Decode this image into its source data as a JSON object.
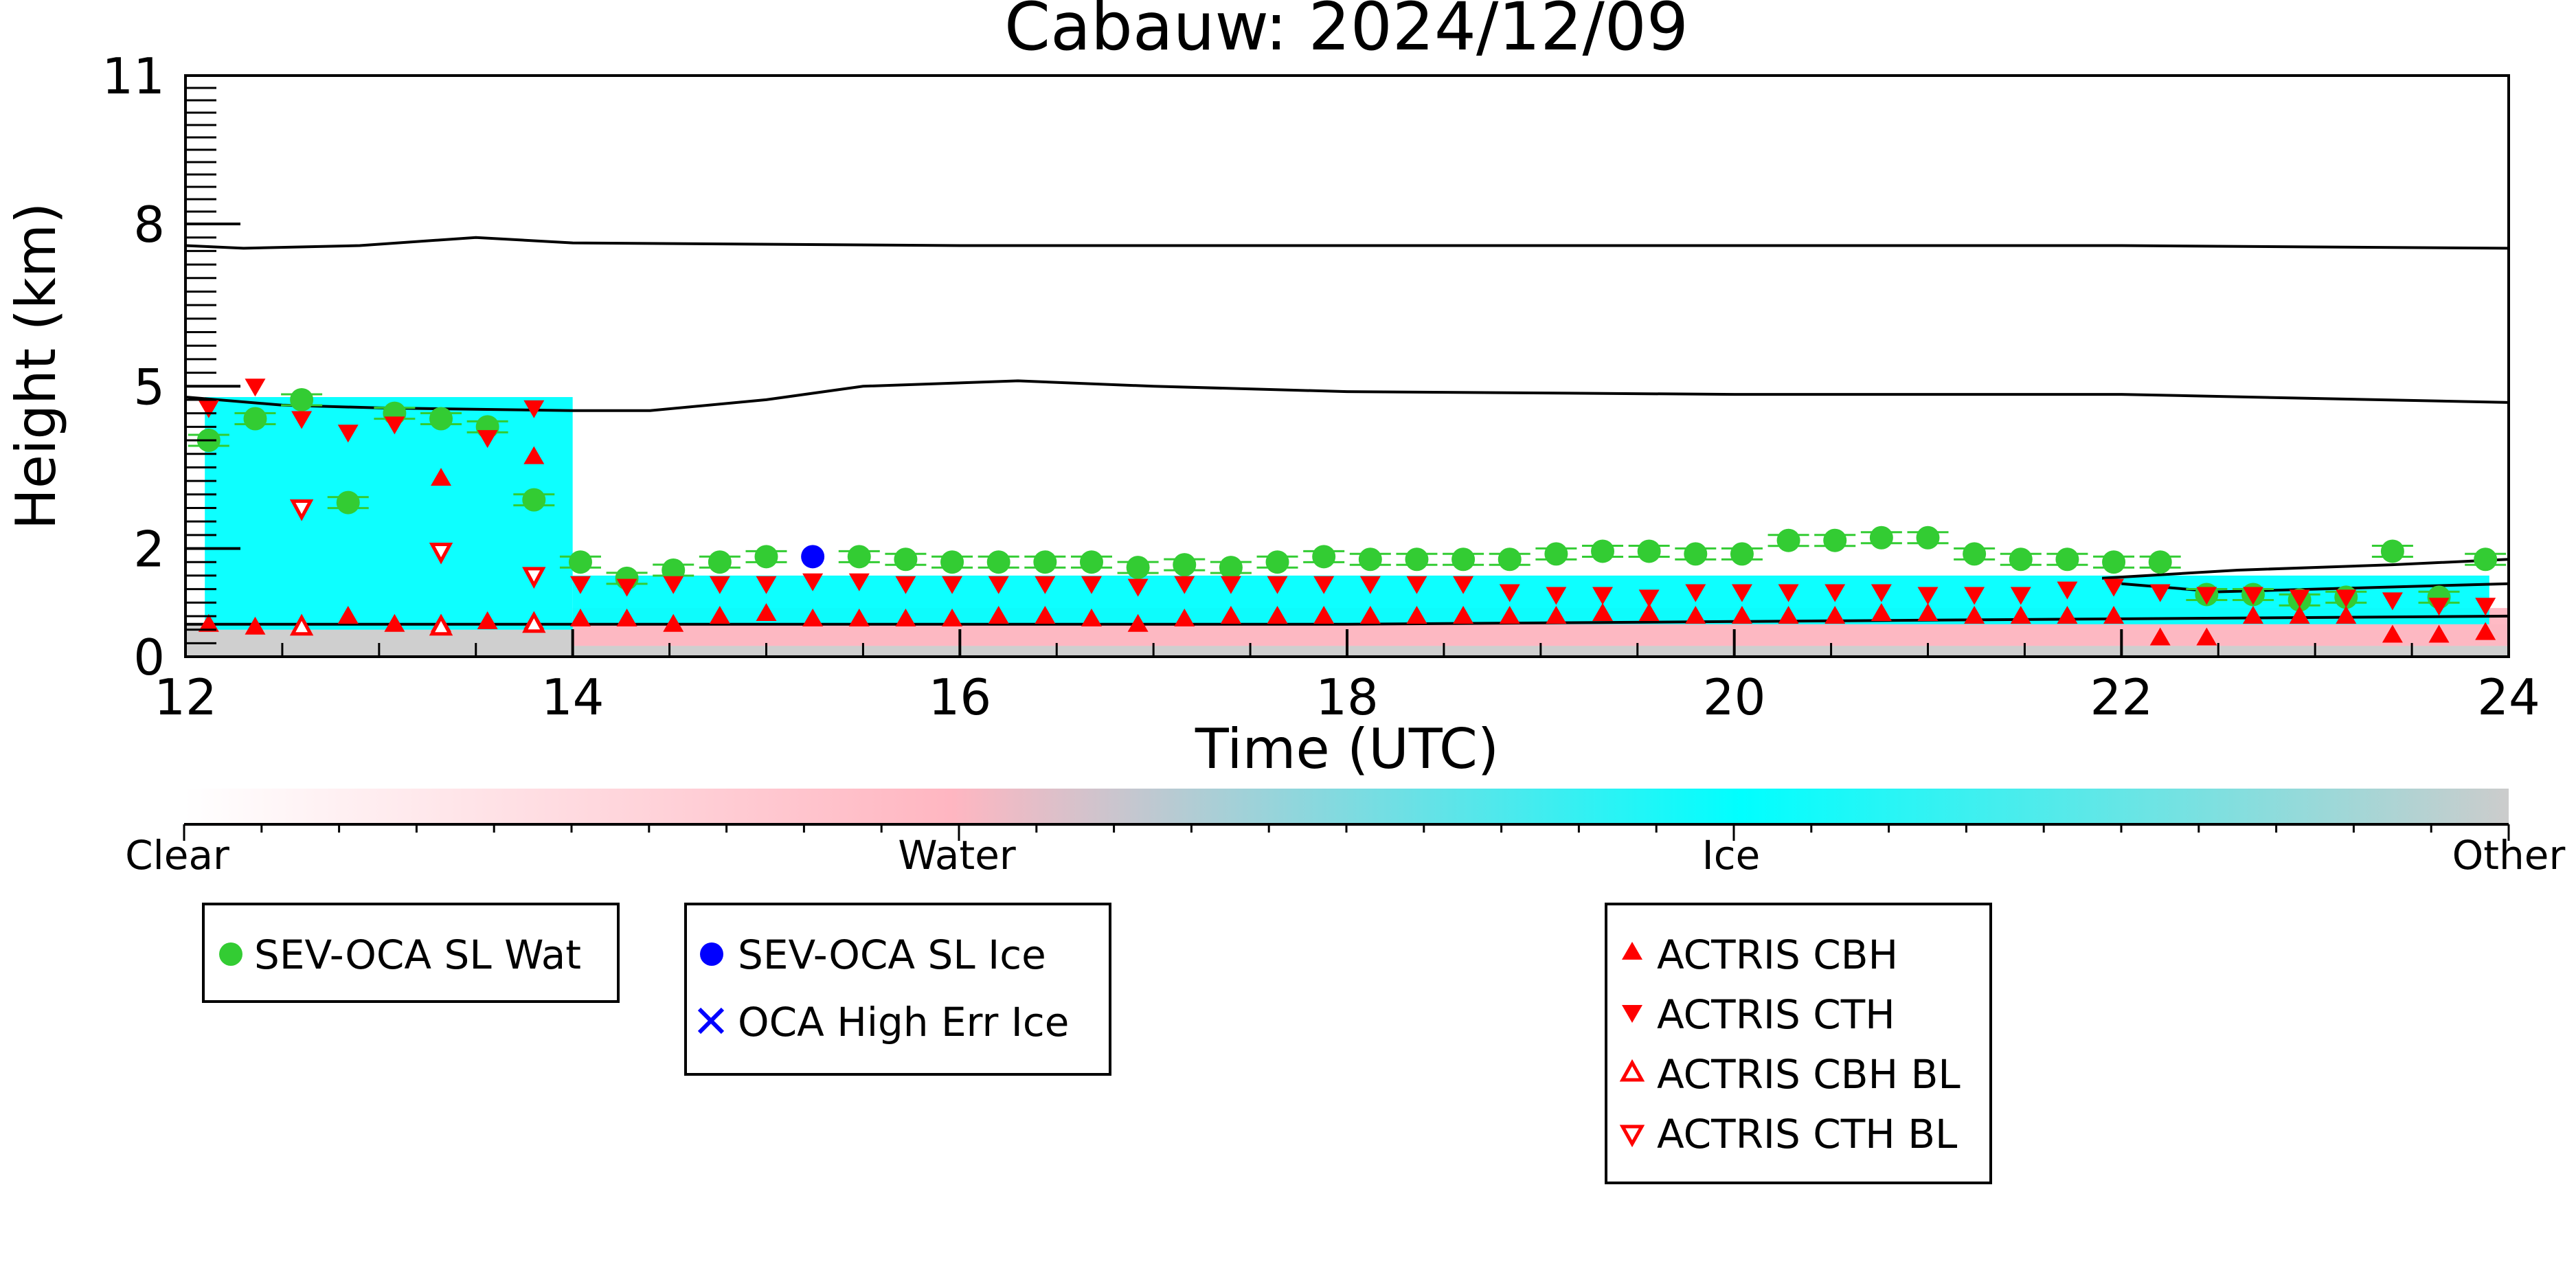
{
  "chart_data": {
    "type": "scatter",
    "title": "Cabauw: 2024/12/09",
    "xlabel": "Time (UTC)",
    "ylabel": "Height (km)",
    "xlim": [
      12,
      24
    ],
    "ylim": [
      0,
      11
    ],
    "x_ticks": [
      12,
      14,
      16,
      18,
      20,
      22,
      24
    ],
    "y_ticks": [
      0,
      2,
      5,
      8,
      11
    ],
    "y_scale": "nonlinear (compressed above 8 km)",
    "colorbar": {
      "labels": [
        "Clear",
        "Water",
        "Ice",
        "Other"
      ],
      "colors": [
        "#ffffff",
        "#ffb6c1",
        "#00ffff",
        "#cccccc"
      ]
    },
    "background_layers": [
      {
        "name": "Other",
        "color": "#cccccc",
        "x": [
          12,
          24
        ],
        "y": [
          0,
          0.6
        ]
      },
      {
        "name": "Water",
        "color": "#ffb6c1",
        "x": [
          14,
          24
        ],
        "y": [
          0.2,
          0.9
        ]
      },
      {
        "name": "Ice",
        "color": "#00ffff",
        "x": [
          12.1,
          14.0
        ],
        "y": [
          0.5,
          4.8
        ]
      },
      {
        "name": "Ice",
        "color": "#00ffff",
        "x": [
          14.0,
          23.9
        ],
        "y": [
          0.6,
          1.5
        ]
      }
    ],
    "lines": [
      {
        "x": [
          12,
          12.3,
          12.9,
          13.5,
          14,
          16,
          18,
          20,
          22,
          24
        ],
        "y": [
          7.6,
          7.55,
          7.6,
          7.75,
          7.65,
          7.6,
          7.6,
          7.6,
          7.6,
          7.55
        ]
      },
      {
        "x": [
          12,
          12.5,
          13,
          14,
          14.4,
          15,
          15.5,
          16.3,
          17,
          18,
          20,
          22,
          24
        ],
        "y": [
          4.8,
          4.65,
          4.6,
          4.55,
          4.55,
          4.75,
          5.0,
          5.1,
          5.0,
          4.9,
          4.85,
          4.85,
          4.7
        ]
      },
      {
        "x": [
          12,
          14,
          16,
          18,
          20,
          22,
          24
        ],
        "y": [
          0.6,
          0.6,
          0.6,
          0.6,
          0.65,
          0.7,
          0.75
        ]
      },
      {
        "x": [
          21.9,
          22.6,
          23.4,
          24
        ],
        "y": [
          1.45,
          1.6,
          1.7,
          1.8
        ]
      },
      {
        "x": [
          22.0,
          22.5,
          23.0,
          24
        ],
        "y": [
          1.35,
          1.2,
          1.25,
          1.35
        ]
      }
    ],
    "series": [
      {
        "name": "SEV-OCA SL Wat",
        "marker": "circle",
        "color": "#33cc33",
        "x": [
          12.12,
          12.36,
          12.6,
          12.84,
          13.08,
          13.32,
          13.56,
          13.8,
          14.04,
          14.28,
          14.52,
          14.76,
          15.0,
          15.48,
          15.72,
          15.96,
          16.2,
          16.44,
          16.68,
          16.92,
          17.16,
          17.4,
          17.64,
          17.88,
          18.12,
          18.36,
          18.6,
          18.84,
          19.08,
          19.32,
          19.56,
          19.8,
          20.04,
          20.28,
          20.52,
          20.76,
          21.0,
          21.24,
          21.48,
          21.72,
          21.96,
          22.2,
          22.44,
          22.68,
          22.92,
          23.16,
          23.4,
          23.64,
          23.88
        ],
        "y": [
          4.0,
          4.4,
          4.75,
          2.85,
          4.5,
          4.4,
          4.25,
          2.9,
          1.75,
          1.45,
          1.6,
          1.75,
          1.85,
          1.85,
          1.8,
          1.75,
          1.75,
          1.75,
          1.75,
          1.65,
          1.7,
          1.65,
          1.75,
          1.85,
          1.8,
          1.8,
          1.8,
          1.8,
          1.9,
          1.95,
          1.95,
          1.9,
          1.9,
          2.15,
          2.15,
          2.2,
          2.2,
          1.9,
          1.8,
          1.8,
          1.75,
          1.75,
          1.15,
          1.15,
          1.05,
          1.1,
          1.95,
          1.1,
          1.8
        ]
      },
      {
        "name": "SEV-OCA SL Ice",
        "marker": "circle",
        "color": "#0000ff",
        "x": [
          15.24
        ],
        "y": [
          1.85
        ]
      },
      {
        "name": "OCA High Err Ice",
        "marker": "x",
        "color": "#0000ff",
        "x": [],
        "y": []
      },
      {
        "name": "ACTRIS CBH",
        "marker": "triangle-up",
        "color": "#ff0000",
        "x": [
          12.12,
          12.36,
          12.84,
          13.08,
          13.32,
          13.56,
          13.8,
          14.04,
          14.28,
          14.52,
          14.76,
          15.0,
          15.24,
          15.48,
          15.72,
          15.96,
          16.2,
          16.44,
          16.68,
          16.92,
          17.16,
          17.4,
          17.64,
          17.88,
          18.12,
          18.36,
          18.6,
          18.84,
          19.08,
          19.32,
          19.56,
          19.8,
          20.04,
          20.28,
          20.52,
          20.76,
          21.0,
          21.24,
          21.48,
          21.72,
          21.96,
          22.2,
          22.44,
          22.68,
          22.92,
          23.16,
          23.4,
          23.64,
          23.88,
          13.32,
          13.8
        ],
        "y": [
          0.6,
          0.55,
          0.75,
          0.6,
          0.6,
          0.65,
          0.65,
          0.7,
          0.7,
          0.6,
          0.75,
          0.8,
          0.7,
          0.7,
          0.7,
          0.7,
          0.75,
          0.75,
          0.7,
          0.6,
          0.7,
          0.75,
          0.75,
          0.75,
          0.75,
          0.75,
          0.75,
          0.75,
          0.75,
          0.8,
          0.8,
          0.75,
          0.75,
          0.75,
          0.75,
          0.8,
          0.8,
          0.75,
          0.75,
          0.75,
          0.75,
          0.35,
          0.35,
          0.75,
          0.75,
          0.75,
          0.4,
          0.4,
          0.45,
          3.3,
          3.7
        ]
      },
      {
        "name": "ACTRIS CTH",
        "marker": "triangle-down",
        "color": "#ff0000",
        "x": [
          12.12,
          12.36,
          12.6,
          12.84,
          13.08,
          13.56,
          13.8,
          14.04,
          14.28,
          14.52,
          14.76,
          15.0,
          15.24,
          15.48,
          15.72,
          15.96,
          16.2,
          16.44,
          16.68,
          16.92,
          17.16,
          17.4,
          17.64,
          17.88,
          18.12,
          18.36,
          18.6,
          18.84,
          19.08,
          19.32,
          19.56,
          19.8,
          20.04,
          20.28,
          20.52,
          20.76,
          21.0,
          21.24,
          21.48,
          21.72,
          21.96,
          22.2,
          22.44,
          22.68,
          22.92,
          23.16,
          23.4,
          23.64,
          23.88
        ],
        "y": [
          4.6,
          5.0,
          4.4,
          4.15,
          4.3,
          4.05,
          4.6,
          1.35,
          1.3,
          1.35,
          1.35,
          1.35,
          1.4,
          1.4,
          1.35,
          1.35,
          1.35,
          1.35,
          1.35,
          1.3,
          1.35,
          1.35,
          1.35,
          1.35,
          1.35,
          1.35,
          1.35,
          1.2,
          1.15,
          1.15,
          1.1,
          1.2,
          1.2,
          1.2,
          1.2,
          1.2,
          1.15,
          1.15,
          1.15,
          1.25,
          1.3,
          1.2,
          1.15,
          1.15,
          1.1,
          1.1,
          1.05,
          0.95,
          0.95
        ]
      },
      {
        "name": "ACTRIS CBH BL",
        "marker": "triangle-up-open",
        "color": "#ff0000",
        "x": [
          12.6,
          13.32,
          13.8
        ],
        "y": [
          0.55,
          0.55,
          0.6
        ]
      },
      {
        "name": "ACTRIS CTH BL",
        "marker": "triangle-down-open",
        "color": "#ff0000",
        "x": [
          12.6,
          13.32,
          13.8
        ],
        "y": [
          2.75,
          1.95,
          1.5
        ]
      }
    ],
    "legend_groups": [
      [
        "SEV-OCA SL Wat"
      ],
      [
        "SEV-OCA SL Ice",
        "OCA High Err Ice"
      ],
      [
        "ACTRIS CBH",
        "ACTRIS CTH",
        "ACTRIS CBH BL",
        "ACTRIS CTH BL"
      ]
    ],
    "legend_placement": "below"
  }
}
